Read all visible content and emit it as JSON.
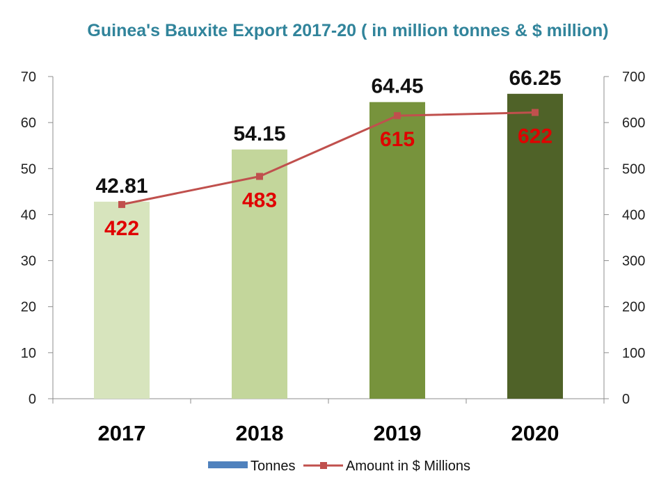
{
  "chart_data": {
    "type": "bar",
    "title": "Guinea's Bauxite Export 2017-20 ( in million tonnes & $ million)",
    "categories": [
      "2017",
      "2018",
      "2019",
      "2020"
    ],
    "series": [
      {
        "name": "Tonnes",
        "type": "bar",
        "axis": "left",
        "values": [
          42.81,
          54.15,
          64.45,
          66.25
        ],
        "labels": [
          "42.81",
          "54.15",
          "64.45",
          "66.25"
        ],
        "bar_colors": [
          "#d7e4bd",
          "#c3d69b",
          "#77933c",
          "#4f6228"
        ],
        "legend_color": "#4f81bd"
      },
      {
        "name": "Amount in $ Millions",
        "type": "line",
        "axis": "right",
        "values": [
          422,
          483,
          615,
          622
        ],
        "labels": [
          "422",
          "483",
          "615",
          "622"
        ],
        "color": "#c0504d",
        "label_color": "#e00000"
      }
    ],
    "y_left": {
      "ylim": [
        0,
        70
      ],
      "ticks": [
        "0",
        "10",
        "20",
        "30",
        "40",
        "50",
        "60",
        "70"
      ]
    },
    "y_right": {
      "ylim": [
        0,
        700
      ],
      "ticks": [
        "0",
        "100",
        "200",
        "300",
        "400",
        "500",
        "600",
        "700"
      ]
    },
    "xlabel": "",
    "ylabel": "",
    "grid": false,
    "legend_position": "bottom",
    "title_color": "#31849b"
  }
}
